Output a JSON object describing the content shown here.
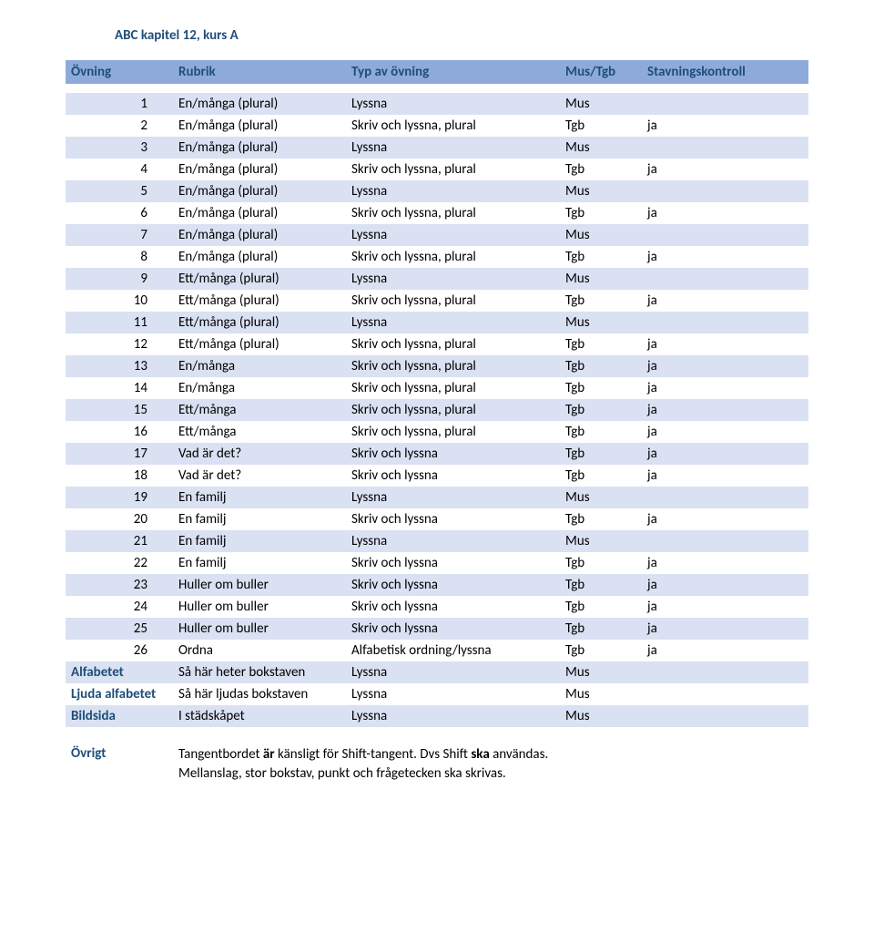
{
  "colors": {
    "title_color": "#1f4e79",
    "header_bg": "#8eaadb",
    "row_odd_bg": "#d9e1f2",
    "row_even_bg": "#ffffff",
    "text_color": "#000000",
    "page_bg": "#ffffff"
  },
  "title": "ABC kapitel 12, kurs A",
  "headers": {
    "ovning": "Övning",
    "rubrik": "Rubrik",
    "typ": "Typ av övning",
    "mus": "Mus/Tgb",
    "stav": "Stavningskontroll"
  },
  "rows": [
    {
      "n": "1",
      "rubrik": "En/många (plural)",
      "typ": "Lyssna",
      "mus": "Mus",
      "stav": ""
    },
    {
      "n": "2",
      "rubrik": "En/många (plural)",
      "typ": "Skriv och lyssna, plural",
      "mus": "Tgb",
      "stav": "ja"
    },
    {
      "n": "3",
      "rubrik": "En/många (plural)",
      "typ": "Lyssna",
      "mus": "Mus",
      "stav": ""
    },
    {
      "n": "4",
      "rubrik": "En/många (plural)",
      "typ": "Skriv och lyssna, plural",
      "mus": "Tgb",
      "stav": "ja"
    },
    {
      "n": "5",
      "rubrik": "En/många (plural)",
      "typ": "Lyssna",
      "mus": "Mus",
      "stav": ""
    },
    {
      "n": "6",
      "rubrik": "En/många (plural)",
      "typ": "Skriv och lyssna, plural",
      "mus": "Tgb",
      "stav": "ja"
    },
    {
      "n": "7",
      "rubrik": "En/många (plural)",
      "typ": "Lyssna",
      "mus": "Mus",
      "stav": ""
    },
    {
      "n": "8",
      "rubrik": "En/många (plural)",
      "typ": "Skriv och lyssna, plural",
      "mus": "Tgb",
      "stav": "ja"
    },
    {
      "n": "9",
      "rubrik": "Ett/många (plural)",
      "typ": "Lyssna",
      "mus": "Mus",
      "stav": ""
    },
    {
      "n": "10",
      "rubrik": "Ett/många (plural)",
      "typ": "Skriv och lyssna, plural",
      "mus": "Tgb",
      "stav": "ja"
    },
    {
      "n": "11",
      "rubrik": "Ett/många (plural)",
      "typ": "Lyssna",
      "mus": "Mus",
      "stav": ""
    },
    {
      "n": "12",
      "rubrik": "Ett/många (plural)",
      "typ": "Skriv och lyssna, plural",
      "mus": "Tgb",
      "stav": "ja"
    },
    {
      "n": "13",
      "rubrik": "En/många",
      "typ": "Skriv och lyssna, plural",
      "mus": "Tgb",
      "stav": "ja"
    },
    {
      "n": "14",
      "rubrik": "En/många",
      "typ": "Skriv och lyssna, plural",
      "mus": "Tgb",
      "stav": "ja"
    },
    {
      "n": "15",
      "rubrik": "Ett/många",
      "typ": "Skriv och lyssna, plural",
      "mus": "Tgb",
      "stav": "ja"
    },
    {
      "n": "16",
      "rubrik": "Ett/många",
      "typ": "Skriv och lyssna, plural",
      "mus": "Tgb",
      "stav": "ja"
    },
    {
      "n": "17",
      "rubrik": "Vad är det?",
      "typ": "Skriv och lyssna",
      "mus": "Tgb",
      "stav": "ja"
    },
    {
      "n": "18",
      "rubrik": "Vad är det?",
      "typ": "Skriv och lyssna",
      "mus": "Tgb",
      "stav": "ja"
    },
    {
      "n": "19",
      "rubrik": "En familj",
      "typ": "Lyssna",
      "mus": "Mus",
      "stav": ""
    },
    {
      "n": "20",
      "rubrik": "En familj",
      "typ": "Skriv och lyssna",
      "mus": "Tgb",
      "stav": "ja"
    },
    {
      "n": "21",
      "rubrik": "En familj",
      "typ": "Lyssna",
      "mus": "Mus",
      "stav": ""
    },
    {
      "n": "22",
      "rubrik": "En familj",
      "typ": "Skriv och lyssna",
      "mus": "Tgb",
      "stav": "ja"
    },
    {
      "n": "23",
      "rubrik": "Huller om buller",
      "typ": "Skriv och lyssna",
      "mus": "Tgb",
      "stav": "ja"
    },
    {
      "n": "24",
      "rubrik": "Huller om buller",
      "typ": "Skriv och lyssna",
      "mus": "Tgb",
      "stav": "ja"
    },
    {
      "n": "25",
      "rubrik": "Huller om buller",
      "typ": "Skriv och lyssna",
      "mus": "Tgb",
      "stav": "ja"
    },
    {
      "n": "26",
      "rubrik": "Ordna",
      "typ": "Alfabetisk ordning/lyssna",
      "mus": "Tgb",
      "stav": "ja"
    }
  ],
  "footer_rows": [
    {
      "n": "Alfabetet",
      "rubrik": "Så här heter bokstaven",
      "typ": "Lyssna",
      "mus": "Mus",
      "stav": ""
    },
    {
      "n": "Ljuda alfabetet",
      "rubrik": "Så här ljudas bokstaven",
      "typ": "Lyssna",
      "mus": "Mus",
      "stav": ""
    },
    {
      "n": "Bildsida",
      "rubrik": "I städskåpet",
      "typ": "Lyssna",
      "mus": "Mus",
      "stav": ""
    }
  ],
  "ovrigt": {
    "label": "Övrigt",
    "line1_a": "Tangentbordet ",
    "line1_b": "är",
    "line1_c": " känsligt för Shift-tangent. Dvs Shift ",
    "line1_d": "ska",
    "line1_e": " användas.",
    "line2": "Mellanslag, stor bokstav, punkt och frågetecken ska skrivas."
  }
}
